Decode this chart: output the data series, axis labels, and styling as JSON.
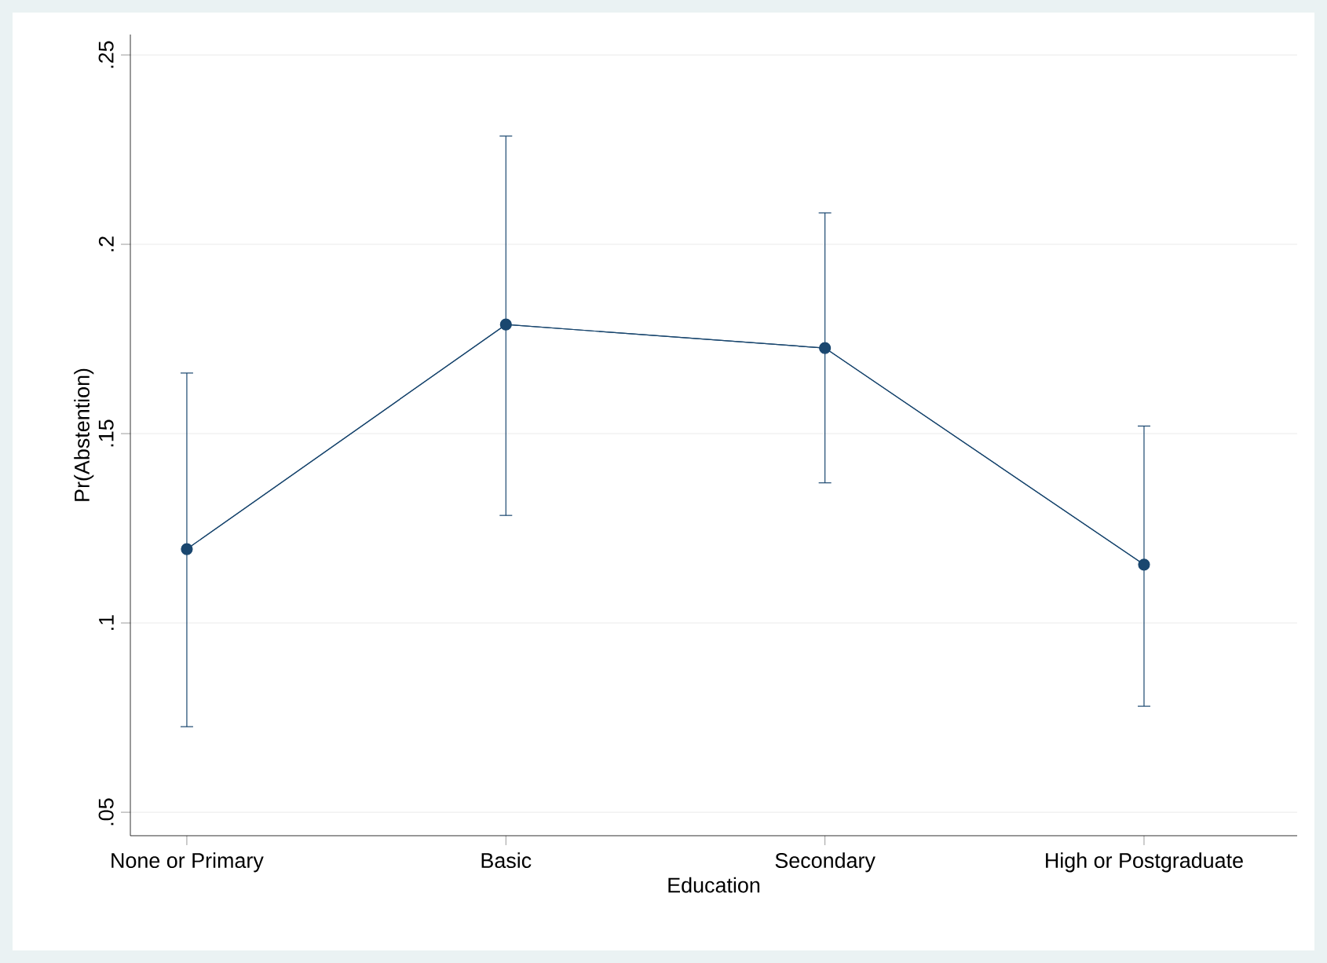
{
  "chart_data": {
    "type": "line",
    "xlabel": "Education",
    "ylabel": "Pr(Abstention)",
    "categories": [
      "None or Primary",
      "Basic",
      "Secondary",
      "High or Postgraduate"
    ],
    "values": [
      0.1195,
      0.1788,
      0.1726,
      0.1154
    ],
    "errors": [
      [
        0.0726,
        0.166
      ],
      [
        0.1284,
        0.2286
      ],
      [
        0.137,
        0.2083
      ],
      [
        0.078,
        0.152
      ]
    ],
    "color": "#1a476f",
    "ylim": [
      0.0438,
      0.2554
    ],
    "yticks": [
      {
        "value": 0.05,
        "label": ".05"
      },
      {
        "value": 0.1,
        "label": ".1"
      },
      {
        "value": 0.15,
        "label": ".15"
      },
      {
        "value": 0.2,
        "label": ".2"
      },
      {
        "value": 0.25,
        "label": ".25"
      }
    ],
    "grid": "y",
    "marker": "circle"
  }
}
